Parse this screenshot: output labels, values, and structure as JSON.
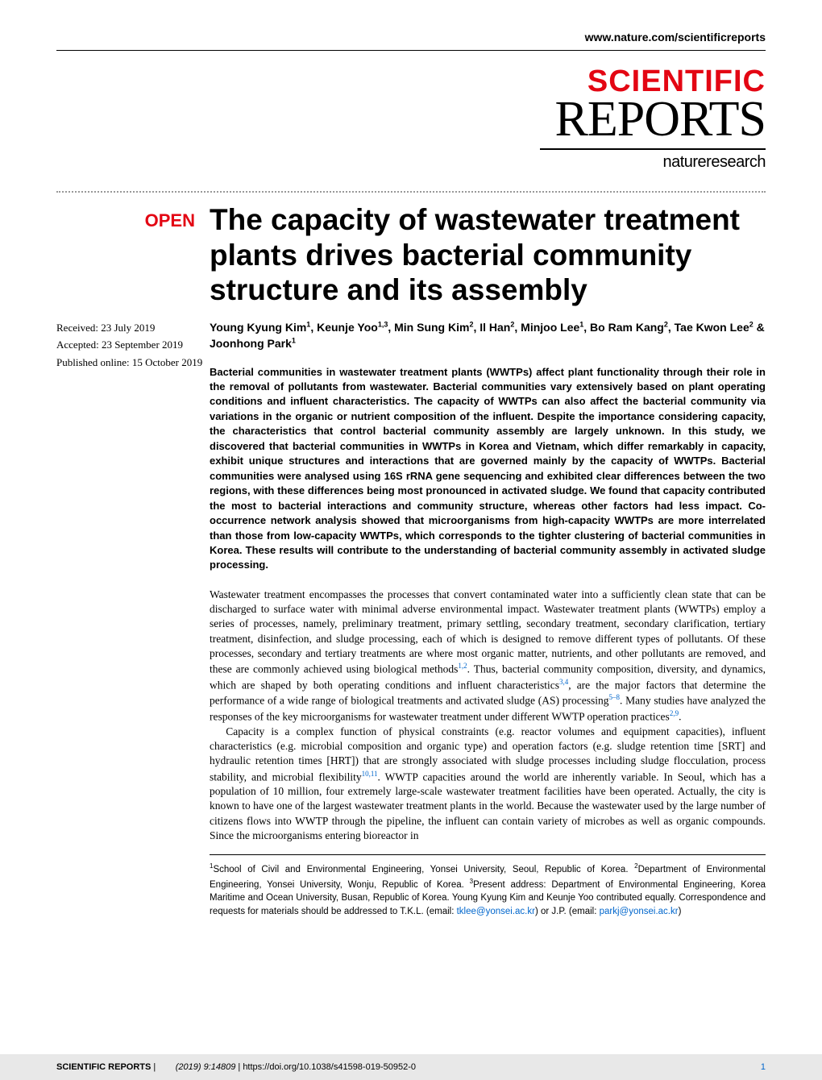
{
  "header": {
    "url": "www.nature.com/scientificreports"
  },
  "logo": {
    "line1": "SCIENTIFIC",
    "line2": "REPORTS",
    "subtitle": "natureresearch"
  },
  "badge": "OPEN",
  "dates": {
    "received": "Received: 23 July 2019",
    "accepted": "Accepted: 23 September 2019",
    "published": "Published online: 15 October 2019"
  },
  "title": "The capacity of wastewater treatment plants drives bacterial community structure and its assembly",
  "authors_html": "Young Kyung Kim<sup>1</sup>, Keunje Yoo<sup>1,3</sup>, Min Sung Kim<sup>2</sup>, Il Han<sup>2</sup>, Minjoo Lee<sup>1</sup>, Bo Ram Kang<sup>2</sup>, Tae Kwon Lee<sup>2</sup> & Joonhong Park<sup>1</sup>",
  "abstract": "Bacterial communities in wastewater treatment plants (WWTPs) affect plant functionality through their role in the removal of pollutants from wastewater. Bacterial communities vary extensively based on plant operating conditions and influent characteristics. The capacity of WWTPs can also affect the bacterial community via variations in the organic or nutrient composition of the influent. Despite the importance considering capacity, the characteristics that control bacterial community assembly are largely unknown. In this study, we discovered that bacterial communities in WWTPs in Korea and Vietnam, which differ remarkably in capacity, exhibit unique structures and interactions that are governed mainly by the capacity of WWTPs. Bacterial communities were analysed using 16S rRNA gene sequencing and exhibited clear differences between the two regions, with these differences being most pronounced in activated sludge. We found that capacity contributed the most to bacterial interactions and community structure, whereas other factors had less impact. Co-occurrence network analysis showed that microorganisms from high-capacity WWTPs are more interrelated than those from low-capacity WWTPs, which corresponds to the tighter clustering of bacterial communities in Korea. These results will contribute to the understanding of bacterial community assembly in activated sludge processing.",
  "body": {
    "p1_part1": "Wastewater treatment encompasses the processes that convert contaminated water into a sufficiently clean state that can be discharged to surface water with minimal adverse environmental impact. Wastewater treatment plants (WWTPs) employ a series of processes, namely, preliminary treatment, primary settling, secondary treatment, secondary clarification, tertiary treatment, disinfection, and sludge processing, each of which is designed to remove different types of pollutants. Of these processes, secondary and tertiary treatments are where most organic matter, nutrients, and other pollutants are removed, and these are commonly achieved using biological methods",
    "ref1": "1,2",
    "p1_part2": ". Thus, bacterial community composition, diversity, and dynamics, which are shaped by both operating conditions and influent characteristics",
    "ref2": "3,4",
    "p1_part3": ", are the major factors that determine the performance of a wide range of biological treatments and activated sludge (AS) processing",
    "ref3": "5–8",
    "p1_part4": ". Many studies have analyzed the responses of the key microorganisms for wastewater treatment under different WWTP operation practices",
    "ref4": "2,9",
    "p1_part5": ".",
    "p2_part1": "Capacity is a complex function of physical constraints (e.g. reactor volumes and equipment capacities), influent characteristics (e.g. microbial composition and organic type) and operation factors (e.g. sludge retention time [SRT] and hydraulic retention times [HRT]) that are strongly associated with sludge processes including sludge flocculation, process stability, and microbial flexibility",
    "ref5": "10,11",
    "p2_part2": ". WWTP capacities around the world are inherently variable. In Seoul, which has a population of 10 million, four extremely large-scale wastewater treatment facilities have been operated. Actually, the city is known to have one of the largest wastewater treatment plants in the world. Because the wastewater used by the large number of citizens flows into WWTP through the pipeline, the influent can contain variety of microbes as well as organic compounds. Since the microorganisms entering bioreactor in"
  },
  "affiliations_html": "<sup>1</sup>School of Civil and Environmental Engineering, Yonsei University, Seoul, Republic of Korea. <sup>2</sup>Department of Environmental Engineering, Yonsei University, Wonju, Republic of Korea. <sup>3</sup>Present address: Department of Environmental Engineering, Korea Maritime and Ocean University, Busan, Republic of Korea. Young Kyung Kim and Keunje Yoo contributed equally. Correspondence and requests for materials should be addressed to T.K.L. (email: <span class=\"email-link\">tklee@yonsei.ac.kr</span>) or J.P. (email: <span class=\"email-link\">parkj@yonsei.ac.kr</span>)",
  "footer": {
    "journal": "SCIENTIFIC REPORTS",
    "citation": "(2019) 9:14809",
    "doi": " | https://doi.org/10.1038/s41598-019-50952-0",
    "page": "1"
  },
  "colors": {
    "accent_red": "#e30613",
    "link_blue": "#0066cc",
    "footer_bg": "#e8e8e8",
    "text": "#000000",
    "bg": "#ffffff"
  }
}
